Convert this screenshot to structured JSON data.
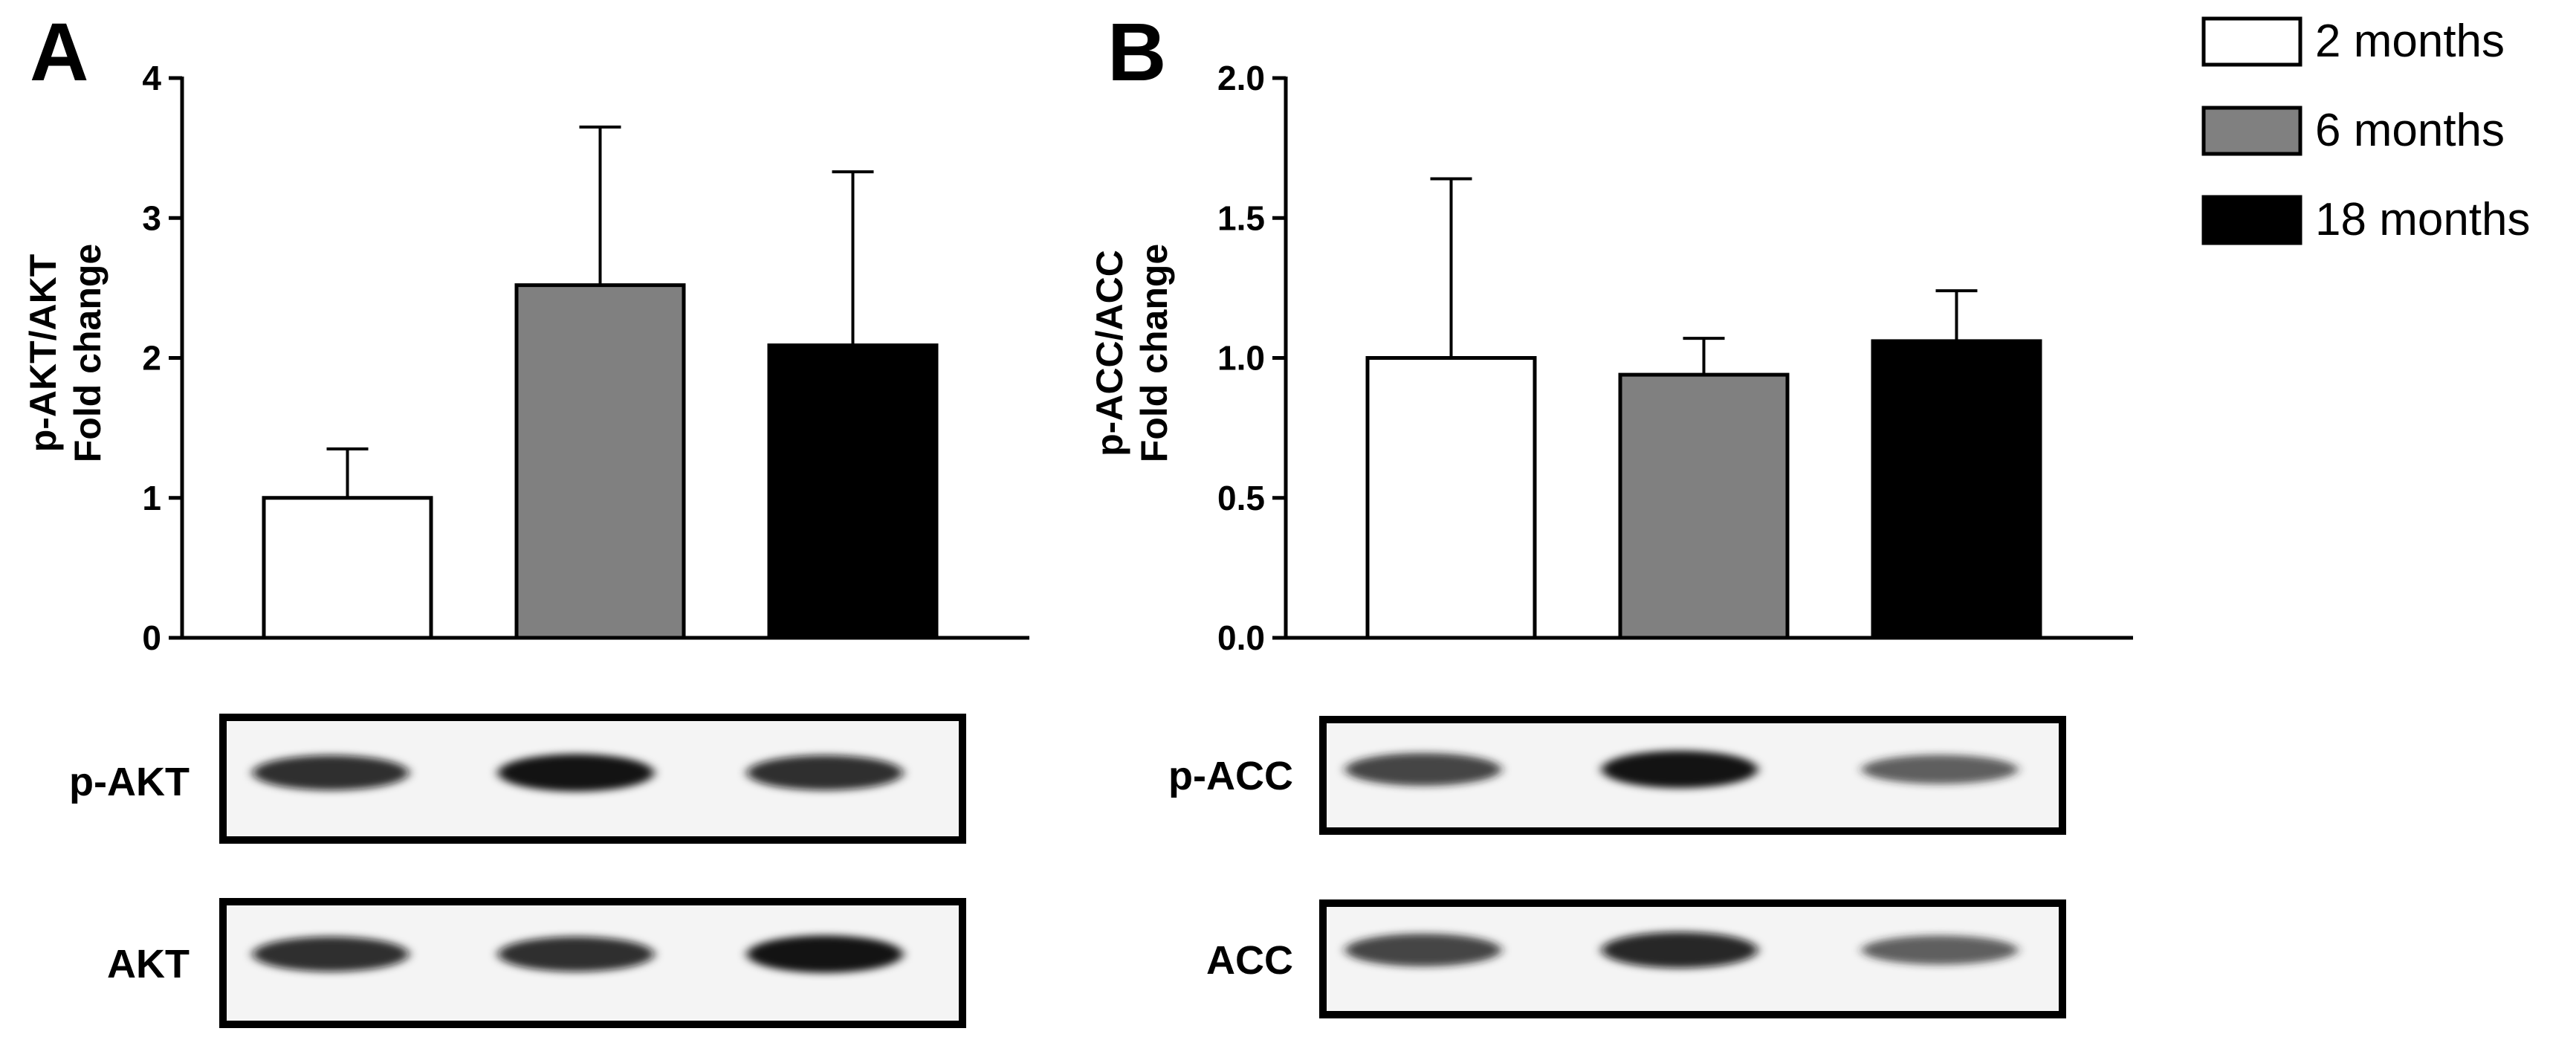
{
  "legend": {
    "placement": "top-right",
    "entries": [
      {
        "label": "2 months",
        "color": "#ffffff"
      },
      {
        "label": "6 months",
        "color": "#808080"
      },
      {
        "label": "18 months",
        "color": "#000000"
      }
    ]
  },
  "chart_data": [
    {
      "panel_label": "A",
      "type": "bar",
      "categories": [
        "2 months",
        "6 months",
        "18 months"
      ],
      "values": [
        1.0,
        2.52,
        2.09
      ],
      "error_upper": [
        0.35,
        1.13,
        1.24
      ],
      "colors": [
        "#ffffff",
        "#808080",
        "#000000"
      ],
      "ylabel_lines": [
        "p-AKT/AKT",
        "Fold change"
      ],
      "ylim": [
        0,
        4
      ],
      "yticks": [
        "0",
        "1",
        "2",
        "3",
        "4"
      ],
      "grid": false
    },
    {
      "panel_label": "B",
      "type": "bar",
      "categories": [
        "2 months",
        "6 months",
        "18 months"
      ],
      "values": [
        1.0,
        0.94,
        1.06
      ],
      "error_upper": [
        0.64,
        0.13,
        0.18
      ],
      "colors": [
        "#ffffff",
        "#808080",
        "#000000"
      ],
      "ylabel_lines": [
        "p-ACC/ACC",
        "Fold change"
      ],
      "ylim": [
        0,
        2
      ],
      "yticks": [
        "0.0",
        "0.5",
        "1.0",
        "1.5",
        "2.0"
      ],
      "grid": false
    }
  ],
  "blots": {
    "A": [
      {
        "label": "p-AKT",
        "band_intensity": [
          0.85,
          0.95,
          0.85
        ]
      },
      {
        "label": "AKT",
        "band_intensity": [
          0.85,
          0.85,
          0.95
        ]
      }
    ],
    "B": [
      {
        "label": "p-ACC",
        "band_intensity": [
          0.75,
          0.95,
          0.6
        ]
      },
      {
        "label": "ACC",
        "band_intensity": [
          0.75,
          0.9,
          0.6
        ]
      }
    ]
  }
}
